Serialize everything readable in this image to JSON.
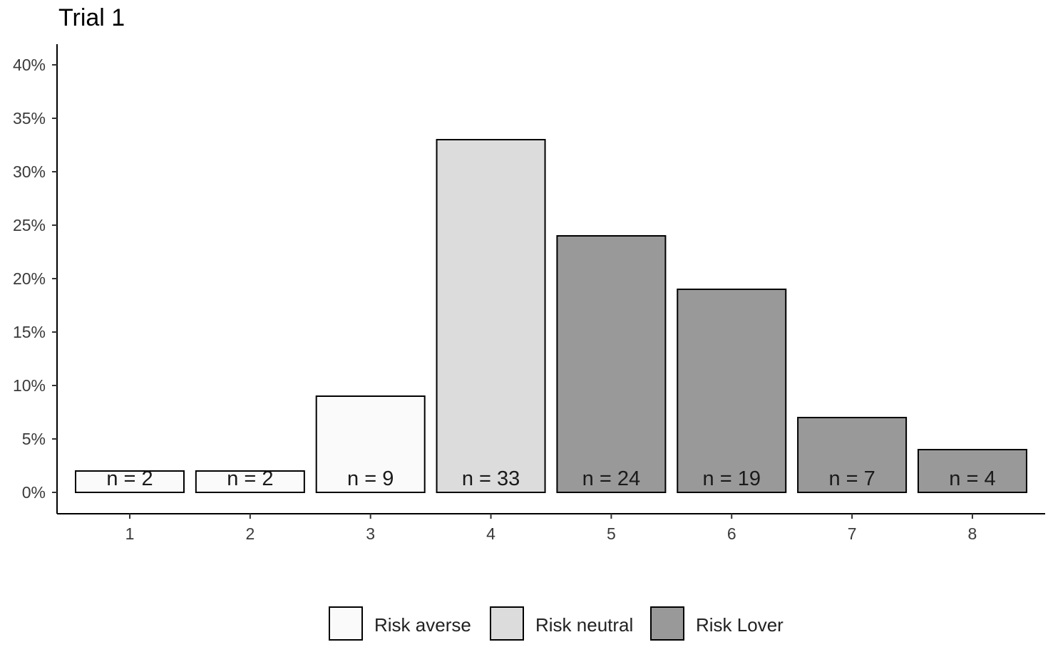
{
  "chart_data": {
    "type": "bar",
    "title": "Trial 1",
    "xlabel": "",
    "ylabel": "",
    "categories": [
      "1",
      "2",
      "3",
      "4",
      "5",
      "6",
      "7",
      "8"
    ],
    "values": [
      2,
      2,
      9,
      33,
      24,
      19,
      7,
      4
    ],
    "value_unit": "percent",
    "bar_labels": [
      "n = 2",
      "n = 2",
      "n = 9",
      "n = 33",
      "n = 24",
      "n = 19",
      "n = 7",
      "n = 4"
    ],
    "bar_groups": [
      "Risk averse",
      "Risk averse",
      "Risk averse",
      "Risk neutral",
      "Risk Lover",
      "Risk Lover",
      "Risk Lover",
      "Risk Lover"
    ],
    "ylim": [
      0,
      40
    ],
    "yticks": [
      0,
      5,
      10,
      15,
      20,
      25,
      30,
      35,
      40
    ],
    "ytick_labels": [
      "0%",
      "5%",
      "10%",
      "15%",
      "20%",
      "25%",
      "30%",
      "35%",
      "40%"
    ],
    "grid": false,
    "legend": {
      "placement": "bottom",
      "entries": [
        {
          "name": "Risk averse",
          "color": "#fafafa"
        },
        {
          "name": "Risk neutral",
          "color": "#dcdcdc"
        },
        {
          "name": "Risk Lover",
          "color": "#999999"
        }
      ]
    },
    "bar_outline_color": "#000000",
    "axis_color": "#000000"
  }
}
